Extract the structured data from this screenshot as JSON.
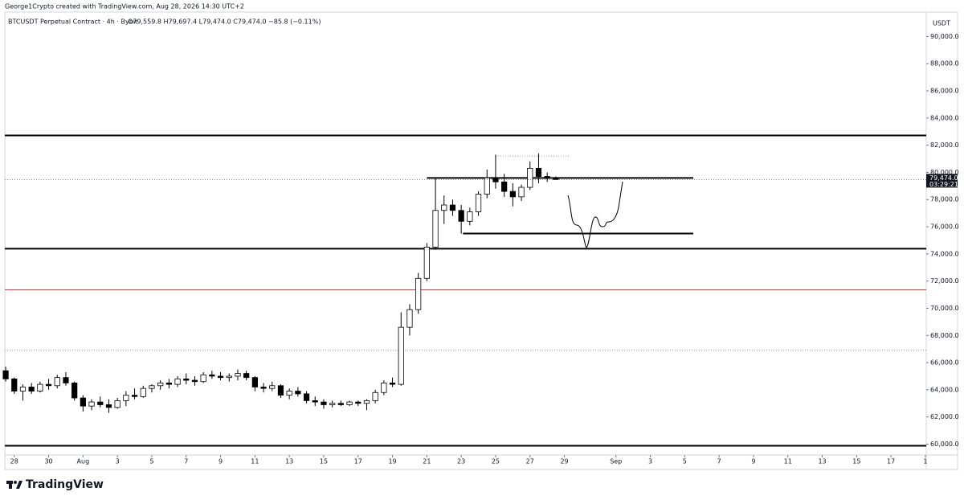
{
  "header": "George1Crypto created with TradingView.com, Aug 28, 2026 14:30 UTC+2",
  "footer": "TradingView",
  "chart_data": {
    "type": "candlestick",
    "title": "BTCUSDT Perpetual Contract · 4h · Bybit",
    "subtitle": "O79,559.8 H79,697.4 L79,474.0 C79,474.0 −85.8 (−0.11%)",
    "y_axis_label": "USDT",
    "up_color": "#ffffff",
    "down_color": "#000000",
    "x": [
      -0.5,
      0,
      0.5,
      1,
      1.5,
      2,
      2.5,
      3,
      3.5,
      4,
      4.5,
      5,
      5.5,
      6,
      6.5,
      7,
      7.5,
      8,
      8.5,
      9,
      9.5,
      10,
      10.5,
      11,
      11.5,
      12,
      12.5,
      13,
      13.5,
      14,
      14.5,
      15,
      15.5,
      16,
      16.5,
      17,
      17.5,
      18,
      18.5,
      19,
      19.5,
      20,
      20.5,
      21,
      21.5,
      22,
      22.5,
      23,
      23.5,
      24,
      24.5,
      25,
      25.5,
      26,
      26.5,
      27,
      27.5,
      28,
      28.5,
      29,
      29.5,
      30,
      30.5,
      31,
      31.5
    ],
    "open": [
      65400,
      64800,
      63900,
      64200,
      63900,
      64400,
      64300,
      64900,
      64500,
      63400,
      62800,
      63100,
      62900,
      62700,
      63200,
      63600,
      63500,
      64100,
      64300,
      64500,
      64400,
      64800,
      64700,
      64600,
      65100,
      65000,
      64900,
      65000,
      65200,
      64900,
      64200,
      64100,
      64300,
      63600,
      63900,
      63700,
      63200,
      63100,
      62900,
      63000,
      62900,
      63100,
      63000,
      63200,
      63800,
      64500,
      64400,
      68600,
      69900,
      72200,
      74500,
      77200,
      77600,
      77200,
      76400,
      77100,
      78400,
      79600,
      79300,
      78600,
      78200,
      78900,
      80300,
      79700,
      79559.8
    ],
    "high": [
      65700,
      64900,
      64400,
      64500,
      64600,
      64800,
      65100,
      65300,
      64600,
      63600,
      63300,
      63500,
      63300,
      63400,
      63900,
      64100,
      64300,
      64400,
      64700,
      64800,
      65000,
      65200,
      65000,
      65300,
      65400,
      65300,
      65200,
      65500,
      65400,
      65000,
      64500,
      64600,
      64400,
      64100,
      64200,
      63900,
      63500,
      63300,
      63200,
      63200,
      63200,
      63200,
      63300,
      64000,
      64700,
      64900,
      69700,
      70300,
      72600,
      74800,
      79600,
      78300,
      78000,
      77600,
      77400,
      78600,
      80200,
      81300,
      79900,
      79200,
      79100,
      80800,
      81400,
      80000,
      79697.4
    ],
    "low": [
      64600,
      63700,
      63200,
      63700,
      63800,
      64000,
      64100,
      64300,
      63200,
      62400,
      62500,
      62700,
      62300,
      62600,
      62800,
      63300,
      63400,
      63800,
      64000,
      64100,
      64200,
      64400,
      64300,
      64500,
      64800,
      64700,
      64600,
      64700,
      64700,
      63900,
      63800,
      63900,
      63400,
      63300,
      63500,
      63000,
      62800,
      62600,
      62700,
      62800,
      62800,
      62800,
      62500,
      63000,
      63600,
      64200,
      64300,
      68000,
      69600,
      72000,
      74300,
      76200,
      76800,
      75500,
      76100,
      76800,
      78100,
      78800,
      78200,
      77500,
      77900,
      78700,
      79200,
      79300,
      79474.0
    ],
    "close": [
      64800,
      63900,
      64200,
      63900,
      64400,
      64300,
      64900,
      64500,
      63400,
      62800,
      63100,
      62900,
      62700,
      63200,
      63600,
      63500,
      64100,
      64300,
      64500,
      64400,
      64800,
      64700,
      64600,
      65100,
      65000,
      64900,
      65000,
      65200,
      64900,
      64200,
      64100,
      64300,
      63600,
      63900,
      63700,
      63200,
      63100,
      62900,
      63000,
      62900,
      63100,
      63000,
      63200,
      63800,
      64500,
      64400,
      68600,
      69900,
      72200,
      74500,
      77200,
      77600,
      77200,
      76400,
      77100,
      78400,
      79600,
      79300,
      78600,
      78200,
      78900,
      80300,
      79700,
      79559.8,
      79474.0
    ],
    "xlim": [
      -0.55,
      53.05
    ],
    "ylim": [
      59200,
      91800
    ],
    "xticks": [
      {
        "value": 0,
        "label": "28"
      },
      {
        "value": 2,
        "label": "30"
      },
      {
        "value": 4,
        "label": "Aug"
      },
      {
        "value": 6,
        "label": "3"
      },
      {
        "value": 8,
        "label": "5"
      },
      {
        "value": 10,
        "label": "7"
      },
      {
        "value": 12,
        "label": "9"
      },
      {
        "value": 14,
        "label": "11"
      },
      {
        "value": 16,
        "label": "13"
      },
      {
        "value": 18,
        "label": "15"
      },
      {
        "value": 20,
        "label": "17"
      },
      {
        "value": 22,
        "label": "19"
      },
      {
        "value": 24,
        "label": "21"
      },
      {
        "value": 26,
        "label": "23"
      },
      {
        "value": 28,
        "label": "25"
      },
      {
        "value": 30,
        "label": "27"
      },
      {
        "value": 32,
        "label": "29"
      },
      {
        "value": 35,
        "label": "Sep"
      },
      {
        "value": 37,
        "label": "3"
      },
      {
        "value": 39,
        "label": "5"
      },
      {
        "value": 41,
        "label": "7"
      },
      {
        "value": 43,
        "label": "9"
      },
      {
        "value": 45,
        "label": "11"
      },
      {
        "value": 47,
        "label": "13"
      },
      {
        "value": 49,
        "label": "15"
      },
      {
        "value": 51,
        "label": "17"
      },
      {
        "value": 53,
        "label": "1"
      }
    ],
    "yticks": [
      {
        "value": 60000,
        "label": "60,000.0"
      },
      {
        "value": 62000,
        "label": "62,000.0"
      },
      {
        "value": 64000,
        "label": "64,000.0"
      },
      {
        "value": 66000,
        "label": "66,000.0"
      },
      {
        "value": 68000,
        "label": "68,000.0"
      },
      {
        "value": 70000,
        "label": "70,000.0"
      },
      {
        "value": 72000,
        "label": "72,000.0"
      },
      {
        "value": 74000,
        "label": "74,000.0"
      },
      {
        "value": 76000,
        "label": "76,000.0"
      },
      {
        "value": 78000,
        "label": "78,000.0"
      },
      {
        "value": 80000,
        "label": "80,000.0"
      },
      {
        "value": 82000,
        "label": "82,000.0"
      },
      {
        "value": 84000,
        "label": "84,000.0"
      },
      {
        "value": 86000,
        "label": "86,000.0"
      },
      {
        "value": 88000,
        "label": "88,000.0"
      },
      {
        "value": 90000,
        "label": "90,000.0"
      }
    ],
    "last_price": {
      "value": 79474.0,
      "label": "79,474.0"
    },
    "countdown": "03:29:21",
    "levels": [
      {
        "value": 82720,
        "color": "#000000",
        "width": 2
      },
      {
        "value": 74380,
        "color": "#000000",
        "width": 2
      },
      {
        "value": 71360,
        "color": "#e0433b",
        "width": 1
      },
      {
        "value": 66920,
        "color": "#9e9e9e",
        "width": 1,
        "dotted": true
      },
      {
        "value": 59880,
        "color": "#000000",
        "width": 2
      }
    ],
    "segments": [
      {
        "value": 79590,
        "from": 24,
        "to": 39.5,
        "color": "#000000",
        "width": 2
      },
      {
        "value": 75500,
        "from": 26.1,
        "to": 39.5,
        "color": "#000000",
        "width": 2
      },
      {
        "value": 81200,
        "from": 28,
        "to": 32.3,
        "color": "#9e9e9e",
        "width": 1,
        "dotted": true
      }
    ]
  }
}
